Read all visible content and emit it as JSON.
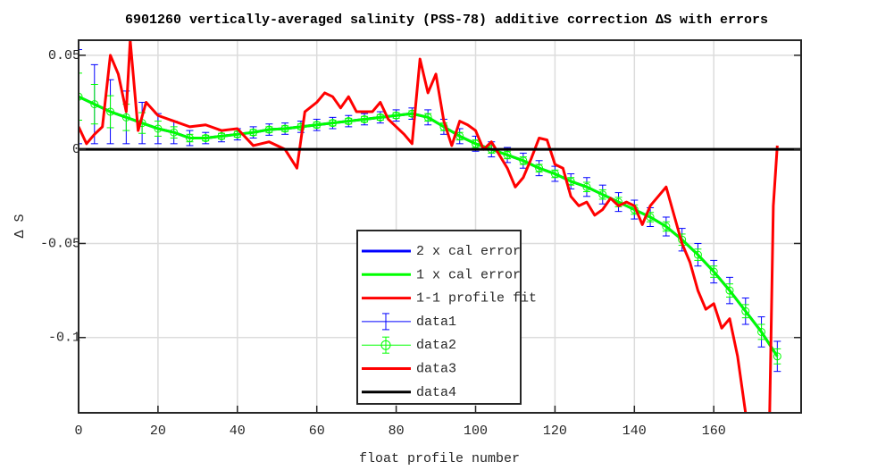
{
  "chart_data": {
    "type": "line",
    "title": "6901260 vertically-averaged salinity (PSS-78) additive correction ΔS with errors",
    "xlabel": "float profile number",
    "ylabel": "Δ S",
    "xlim": [
      0,
      182
    ],
    "ylim": [
      -0.14,
      0.058
    ],
    "xticks": [
      0,
      20,
      40,
      60,
      80,
      100,
      120,
      140,
      160
    ],
    "yticks": [
      -0.1,
      -0.05,
      0,
      0.05
    ],
    "grid": true,
    "legend_position": "lower center",
    "legend_lines": [
      {
        "name": "2 x cal error",
        "color": "#0000ff"
      },
      {
        "name": "1 x cal error",
        "color": "#00ff00"
      },
      {
        "name": "1-1 profile fit",
        "color": "#ff0000"
      }
    ],
    "series": [
      {
        "name": "data1",
        "color": "#0000ff",
        "style": "errorbar",
        "x": [
          0,
          4,
          8,
          12,
          16,
          20,
          24,
          28,
          32,
          36,
          40,
          44,
          48,
          52,
          56,
          60,
          64,
          68,
          72,
          76,
          80,
          84,
          88,
          92,
          96,
          100,
          104,
          108,
          112,
          116,
          120,
          124,
          128,
          132,
          136,
          140,
          144,
          148,
          152,
          156,
          160,
          164,
          168,
          172,
          176
        ],
        "values": [
          0.028,
          0.024,
          0.02,
          0.017,
          0.014,
          0.011,
          0.009,
          0.006,
          0.006,
          0.007,
          0.008,
          0.009,
          0.0105,
          0.011,
          0.012,
          0.013,
          0.014,
          0.015,
          0.016,
          0.017,
          0.018,
          0.019,
          0.017,
          0.012,
          0.007,
          0.003,
          0,
          -0.003,
          -0.006,
          -0.01,
          -0.013,
          -0.017,
          -0.02,
          -0.024,
          -0.028,
          -0.032,
          -0.036,
          -0.041,
          -0.048,
          -0.056,
          -0.065,
          -0.075,
          -0.086,
          -0.097,
          -0.11
        ],
        "errors": [
          0.025,
          0.021,
          0.017,
          0.014,
          0.011,
          0.008,
          0.006,
          0.004,
          0.003,
          0.003,
          0.003,
          0.003,
          0.003,
          0.003,
          0.003,
          0.003,
          0.003,
          0.003,
          0.003,
          0.003,
          0.003,
          0.003,
          0.004,
          0.004,
          0.004,
          0.004,
          0.004,
          0.004,
          0.004,
          0.004,
          0.004,
          0.004,
          0.005,
          0.005,
          0.005,
          0.005,
          0.005,
          0.005,
          0.006,
          0.006,
          0.006,
          0.007,
          0.007,
          0.008,
          0.008
        ]
      },
      {
        "name": "data2",
        "color": "#00ff00",
        "style": "errorbar-circle",
        "x": [
          0,
          4,
          8,
          12,
          16,
          20,
          24,
          28,
          32,
          36,
          40,
          44,
          48,
          52,
          56,
          60,
          64,
          68,
          72,
          76,
          80,
          84,
          88,
          92,
          96,
          100,
          104,
          108,
          112,
          116,
          120,
          124,
          128,
          132,
          136,
          140,
          144,
          148,
          152,
          156,
          160,
          164,
          168,
          172,
          176
        ],
        "values": [
          0.028,
          0.024,
          0.02,
          0.017,
          0.014,
          0.011,
          0.009,
          0.006,
          0.006,
          0.007,
          0.008,
          0.009,
          0.0105,
          0.011,
          0.012,
          0.013,
          0.014,
          0.015,
          0.016,
          0.017,
          0.018,
          0.019,
          0.017,
          0.012,
          0.007,
          0.003,
          0,
          -0.003,
          -0.006,
          -0.01,
          -0.013,
          -0.017,
          -0.02,
          -0.024,
          -0.028,
          -0.032,
          -0.036,
          -0.041,
          -0.048,
          -0.056,
          -0.065,
          -0.075,
          -0.086,
          -0.097,
          -0.11
        ],
        "errors": [
          0.0125,
          0.0105,
          0.0085,
          0.007,
          0.0055,
          0.004,
          0.003,
          0.002,
          0.0015,
          0.0015,
          0.0015,
          0.0015,
          0.0015,
          0.0015,
          0.0015,
          0.0015,
          0.0015,
          0.0015,
          0.0015,
          0.0015,
          0.0015,
          0.0015,
          0.002,
          0.002,
          0.002,
          0.002,
          0.002,
          0.002,
          0.002,
          0.002,
          0.002,
          0.002,
          0.0025,
          0.0025,
          0.0025,
          0.0025,
          0.0025,
          0.0025,
          0.003,
          0.003,
          0.003,
          0.0035,
          0.0035,
          0.004,
          0.004
        ]
      },
      {
        "name": "data3",
        "color": "#ff0000",
        "style": "line",
        "x": [
          0,
          2,
          4,
          6,
          8,
          10,
          12,
          13,
          15,
          17,
          20,
          24,
          28,
          32,
          36,
          40,
          44,
          48,
          52,
          55,
          57,
          60,
          62,
          64,
          66,
          68,
          70,
          74,
          76,
          78,
          82,
          84,
          86,
          88,
          90,
          92,
          94,
          96,
          98,
          100,
          102,
          104,
          108,
          110,
          112,
          114,
          116,
          118,
          120,
          122,
          124,
          126,
          128,
          130,
          132,
          134,
          136,
          138,
          140,
          142,
          144,
          146,
          148,
          150,
          152,
          154,
          156,
          158,
          160,
          162,
          164,
          166,
          168,
          170,
          174,
          175,
          176
        ],
        "values": [
          0.012,
          0.003,
          0.008,
          0.012,
          0.05,
          0.04,
          0.02,
          0.058,
          0.01,
          0.025,
          0.018,
          0.015,
          0.012,
          0.013,
          0.01,
          0.011,
          0.002,
          0.004,
          0,
          -0.01,
          0.02,
          0.025,
          0.03,
          0.028,
          0.022,
          0.028,
          0.02,
          0.02,
          0.025,
          0.016,
          0.008,
          0.003,
          0.048,
          0.03,
          0.04,
          0.015,
          0.002,
          0.015,
          0.013,
          0.01,
          0,
          0.004,
          -0.01,
          -0.02,
          -0.015,
          -0.005,
          0.006,
          0.005,
          -0.008,
          -0.01,
          -0.025,
          -0.03,
          -0.028,
          -0.035,
          -0.032,
          -0.026,
          -0.03,
          -0.028,
          -0.03,
          -0.04,
          -0.03,
          -0.025,
          -0.02,
          -0.035,
          -0.05,
          -0.06,
          -0.075,
          -0.085,
          -0.082,
          -0.095,
          -0.09,
          -0.11,
          -0.14,
          -0.16,
          -0.15,
          -0.03,
          0.002
        ]
      },
      {
        "name": "data4",
        "color": "#000000",
        "style": "line",
        "x": [
          0,
          182
        ],
        "values": [
          0,
          0
        ]
      }
    ]
  }
}
